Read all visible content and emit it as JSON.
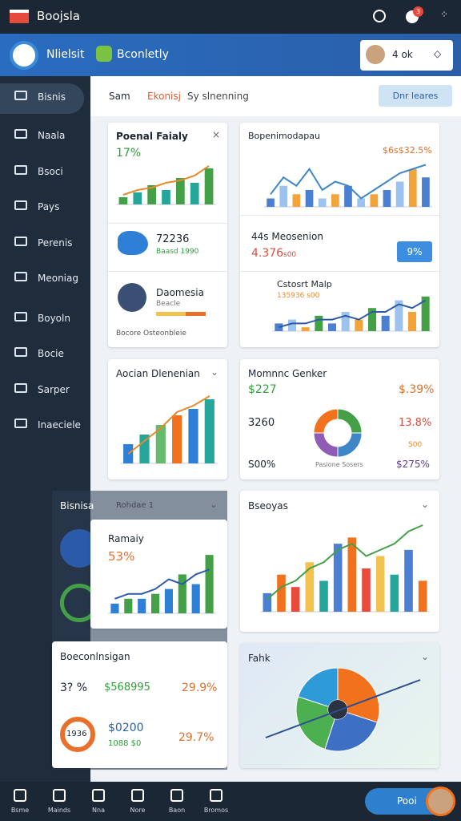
{
  "topbar": {
    "title": "Boojsla",
    "badge": "3"
  },
  "header": {
    "brand": "Nlielsit",
    "product": "Bconletly",
    "status": "4 ok"
  },
  "sidebar": {
    "items": [
      "Bisnis",
      "Naala",
      "Bsoci",
      "Pays",
      "Perenis",
      "Meoniag",
      "Boyoln",
      "Bocie",
      "Sarper",
      "Inaeciele"
    ]
  },
  "tabs": {
    "items": [
      "Sam",
      "Ekonisj",
      "Sy slnenning"
    ],
    "button": "Dnr leares"
  },
  "cards": [
    {
      "title": "Poenal Faialy",
      "metric": "17%",
      "map_value": "72236",
      "map_note": "Baasd 1990",
      "person": "Daomesia",
      "person_note": "Beacle",
      "footer": "Bocore Osteonbleie"
    },
    {
      "title": "Bopenimodapau",
      "metric": "$6s$32.5%",
      "sub_title": "44s Meosenion",
      "sub_metric": "4.376",
      "sub_unit": "s00",
      "button": "9%",
      "third_title": "Cstosrt Malp",
      "third_metric": "135936 s00"
    },
    {
      "title": "Aocian Dlenenian"
    },
    {
      "title": "Momnnc Genker",
      "left_top": "$227",
      "right_top": "$.39%",
      "left_mid": "3260",
      "right_mid": "13.8%",
      "right_note": "S00",
      "left_bottom": "S00%",
      "center_bottom": "Pasione Sosers",
      "right_bottom": "$275%"
    },
    {
      "title": "Ramaiy",
      "metric": "53%",
      "section": "Bisnisa",
      "section_note": "Rohdae 1"
    },
    {
      "title": "Bseoyas"
    },
    {
      "title": "Boeconlnsigan",
      "a": "3? %",
      "b": "$568995",
      "c": "29.9%",
      "d": "$0200",
      "e": "29.7%",
      "f": "1088 $0",
      "ring": "1936"
    },
    {
      "title": "Fahk"
    }
  ],
  "charts": [
    {
      "type": "bar",
      "ylim": [
        0,
        20
      ],
      "values": [
        3,
        5,
        8,
        6,
        11,
        9,
        15
      ],
      "colors": [
        "#43a047",
        "#26a69a"
      ],
      "line": [
        4,
        6,
        7,
        9,
        10,
        12,
        16
      ],
      "line_color": "#e8892b"
    },
    {
      "type": "bar",
      "ylim": [
        0,
        12
      ],
      "values": [
        2,
        5,
        3,
        4,
        2,
        3,
        5,
        2,
        3,
        4,
        6,
        9,
        7
      ],
      "colors": [
        "#4a7fd1",
        "#9cc3ef",
        "#f2a33a"
      ],
      "line": [
        3,
        7,
        5,
        9,
        4,
        6,
        5,
        2,
        4,
        6,
        8,
        9,
        10
      ],
      "line_color": "#3d87c9"
    },
    {
      "type": "bar",
      "ylim": [
        0,
        10
      ],
      "values": [
        2,
        3,
        1,
        4,
        2,
        5,
        3,
        6,
        4,
        8,
        5,
        9
      ],
      "colors": [
        "#4a7fd1",
        "#9cc3ef",
        "#f2a33a",
        "#43a047"
      ],
      "line": [
        1,
        2,
        2,
        3,
        3,
        4,
        3,
        5,
        5,
        7,
        6,
        8
      ],
      "line_color": "#2e5aa8"
    },
    {
      "type": "bar",
      "ylim": [
        0,
        22
      ],
      "values": [
        6,
        9,
        12,
        15,
        17,
        20
      ],
      "colors": [
        "#2e7fd6",
        "#26a69a",
        "#66bb6a",
        "#f2711c"
      ],
      "line": [
        3,
        7,
        11,
        16,
        18,
        21
      ],
      "line_color": "#e8892b"
    },
    {
      "type": "bar",
      "ylim": [
        0,
        14
      ],
      "values": [
        2,
        3,
        3,
        4,
        5,
        8,
        6,
        12
      ],
      "colors": [
        "#2e7fd6",
        "#43a047"
      ],
      "line": [
        3,
        4,
        4,
        5,
        7,
        6,
        8,
        9
      ],
      "line_color": "#2e5aa8"
    },
    {
      "type": "bar",
      "ylim": [
        0,
        14
      ],
      "values": [
        3,
        6,
        4,
        8,
        5,
        11,
        12,
        7,
        9,
        6,
        10,
        5
      ],
      "colors": [
        "#4a7fd1",
        "#f2711c",
        "#e84b3c",
        "#f2c14e",
        "#26a69a"
      ],
      "line": [
        2,
        4,
        5,
        7,
        8,
        10,
        11,
        9,
        10,
        11,
        13,
        14
      ],
      "line_color": "#43a047"
    },
    {
      "type": "donut",
      "values": [
        25,
        25,
        25,
        25
      ],
      "colors": [
        "#43a047",
        "#3d87c9",
        "#8e5bb5",
        "#f2711c"
      ]
    },
    {
      "type": "pie",
      "values": [
        30,
        25,
        25,
        20
      ],
      "colors": [
        "#f2711c",
        "#3d6fc4",
        "#4caf50",
        "#2e9ad8"
      ]
    }
  ],
  "nav": {
    "items": [
      "Bsme",
      "Mainds",
      "Nna",
      "Nore",
      "Baon",
      "Bromos"
    ],
    "profile": "Pooi"
  }
}
